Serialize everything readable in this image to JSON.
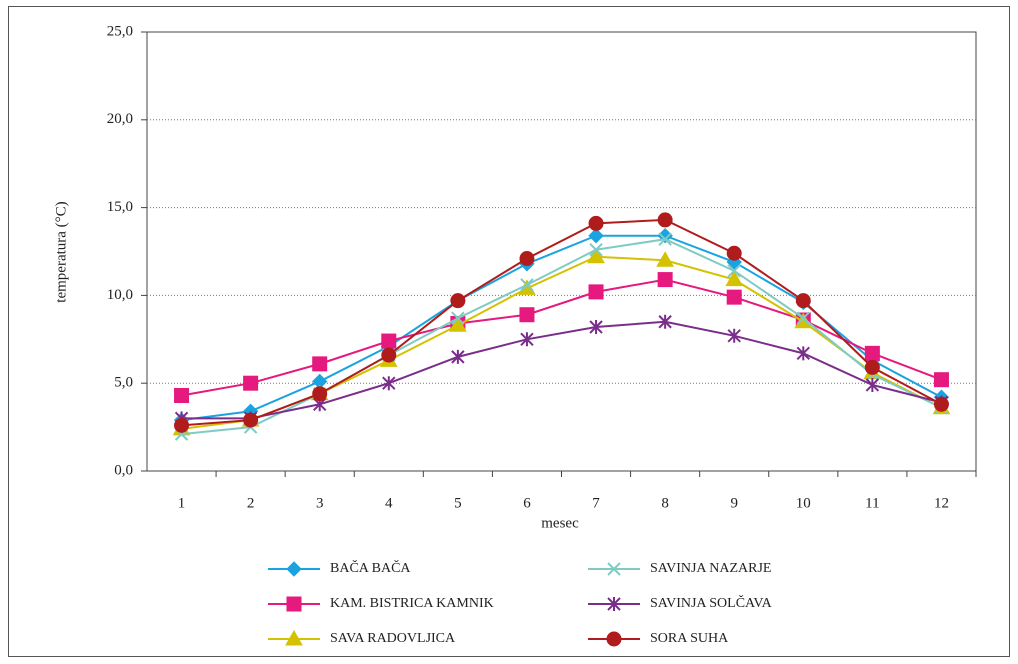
{
  "chart_data": {
    "type": "line",
    "x_label": "mesec",
    "y_label": "temperatura (°C)",
    "categories": [
      1,
      2,
      3,
      4,
      5,
      6,
      7,
      8,
      9,
      10,
      11,
      12
    ],
    "ylim": [
      0,
      25
    ],
    "yticks": [
      {
        "value": 0,
        "label": "0,0"
      },
      {
        "value": 5,
        "label": "5,0"
      },
      {
        "value": 10,
        "label": "10,0"
      },
      {
        "value": 15,
        "label": "15,0"
      },
      {
        "value": 20,
        "label": "20,0"
      },
      {
        "value": 25,
        "label": "25,0"
      }
    ],
    "grid": true,
    "series": [
      {
        "name": "BAČA BAČA",
        "color": "#1aa3e0",
        "marker": "diamond",
        "values": [
          2.9,
          3.4,
          5.1,
          7.1,
          9.7,
          11.8,
          13.4,
          13.4,
          11.9,
          9.6,
          6.3,
          4.2
        ]
      },
      {
        "name": "KAM. BISTRICA KAMNIK",
        "color": "#e5197e",
        "marker": "square",
        "values": [
          4.3,
          5.0,
          6.1,
          7.4,
          8.4,
          8.9,
          10.2,
          10.9,
          9.9,
          8.6,
          6.7,
          5.2
        ]
      },
      {
        "name": "SAVA RADOVLJICA",
        "color": "#d4c100",
        "marker": "triangle",
        "values": [
          2.4,
          2.9,
          4.4,
          6.3,
          8.3,
          10.4,
          12.2,
          12.0,
          10.9,
          8.5,
          5.6,
          3.6
        ]
      },
      {
        "name": "SAVINJA NAZARJE",
        "color": "#7ecbc4",
        "marker": "x",
        "values": [
          2.1,
          2.5,
          4.4,
          6.6,
          8.7,
          10.6,
          12.6,
          13.2,
          11.4,
          8.7,
          5.5,
          3.6
        ]
      },
      {
        "name": "SAVINJA SOLČAVA",
        "color": "#7b2d8b",
        "marker": "star",
        "values": [
          3.0,
          3.0,
          3.8,
          5.0,
          6.5,
          7.5,
          8.2,
          8.5,
          7.7,
          6.7,
          4.9,
          3.9
        ]
      },
      {
        "name": "SORA SUHA",
        "color": "#b01c1c",
        "marker": "circle",
        "values": [
          2.6,
          2.9,
          4.4,
          6.6,
          9.7,
          12.1,
          14.1,
          14.3,
          12.4,
          9.7,
          5.9,
          3.8
        ]
      }
    ]
  }
}
